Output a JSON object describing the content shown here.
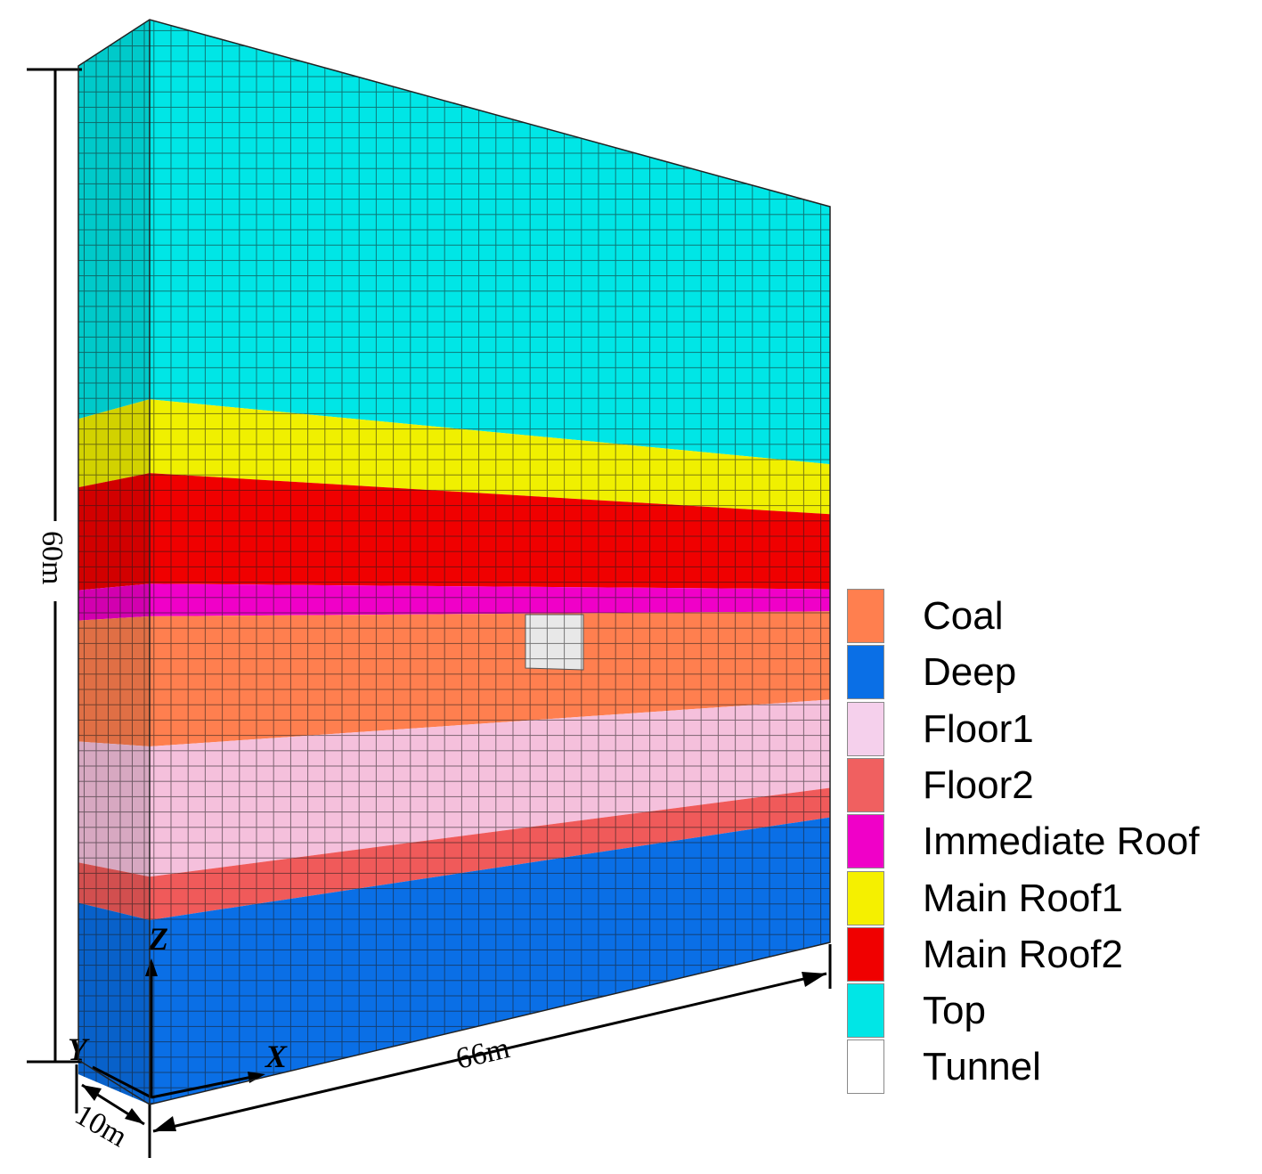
{
  "colors": {
    "Top": "#00e6e6",
    "Main Roof1": "#f0f000",
    "Main Roof2": "#f00000",
    "Immediate Roof": "#f000c8",
    "Coal": "#ff7f4f",
    "Tunnel": "#e8e8e8",
    "Floor1": "#f5c0dc",
    "Floor2": "#f05a5a",
    "Deep": "#0a6fe6"
  },
  "dimensions": {
    "height_label": "60m",
    "length_label": "66m",
    "width_label": "10m"
  },
  "axes": {
    "x": "X",
    "y": "Y",
    "z": "Z"
  },
  "legend": [
    {
      "label": "Coal",
      "color": "#ff7f4f"
    },
    {
      "label": "Deep",
      "color": "#0a6fe6"
    },
    {
      "label": "Floor1",
      "color": "#f5d0ec"
    },
    {
      "label": "Floor2",
      "color": "#f06060"
    },
    {
      "label": "Immediate Roof",
      "color": "#f000c8"
    },
    {
      "label": "Main Roof1",
      "color": "#f5f000"
    },
    {
      "label": "Main Roof2",
      "color": "#f00000"
    },
    {
      "label": "Top",
      "color": "#00e6e6"
    },
    {
      "label": "Tunnel",
      "color": "#ffffff"
    }
  ]
}
